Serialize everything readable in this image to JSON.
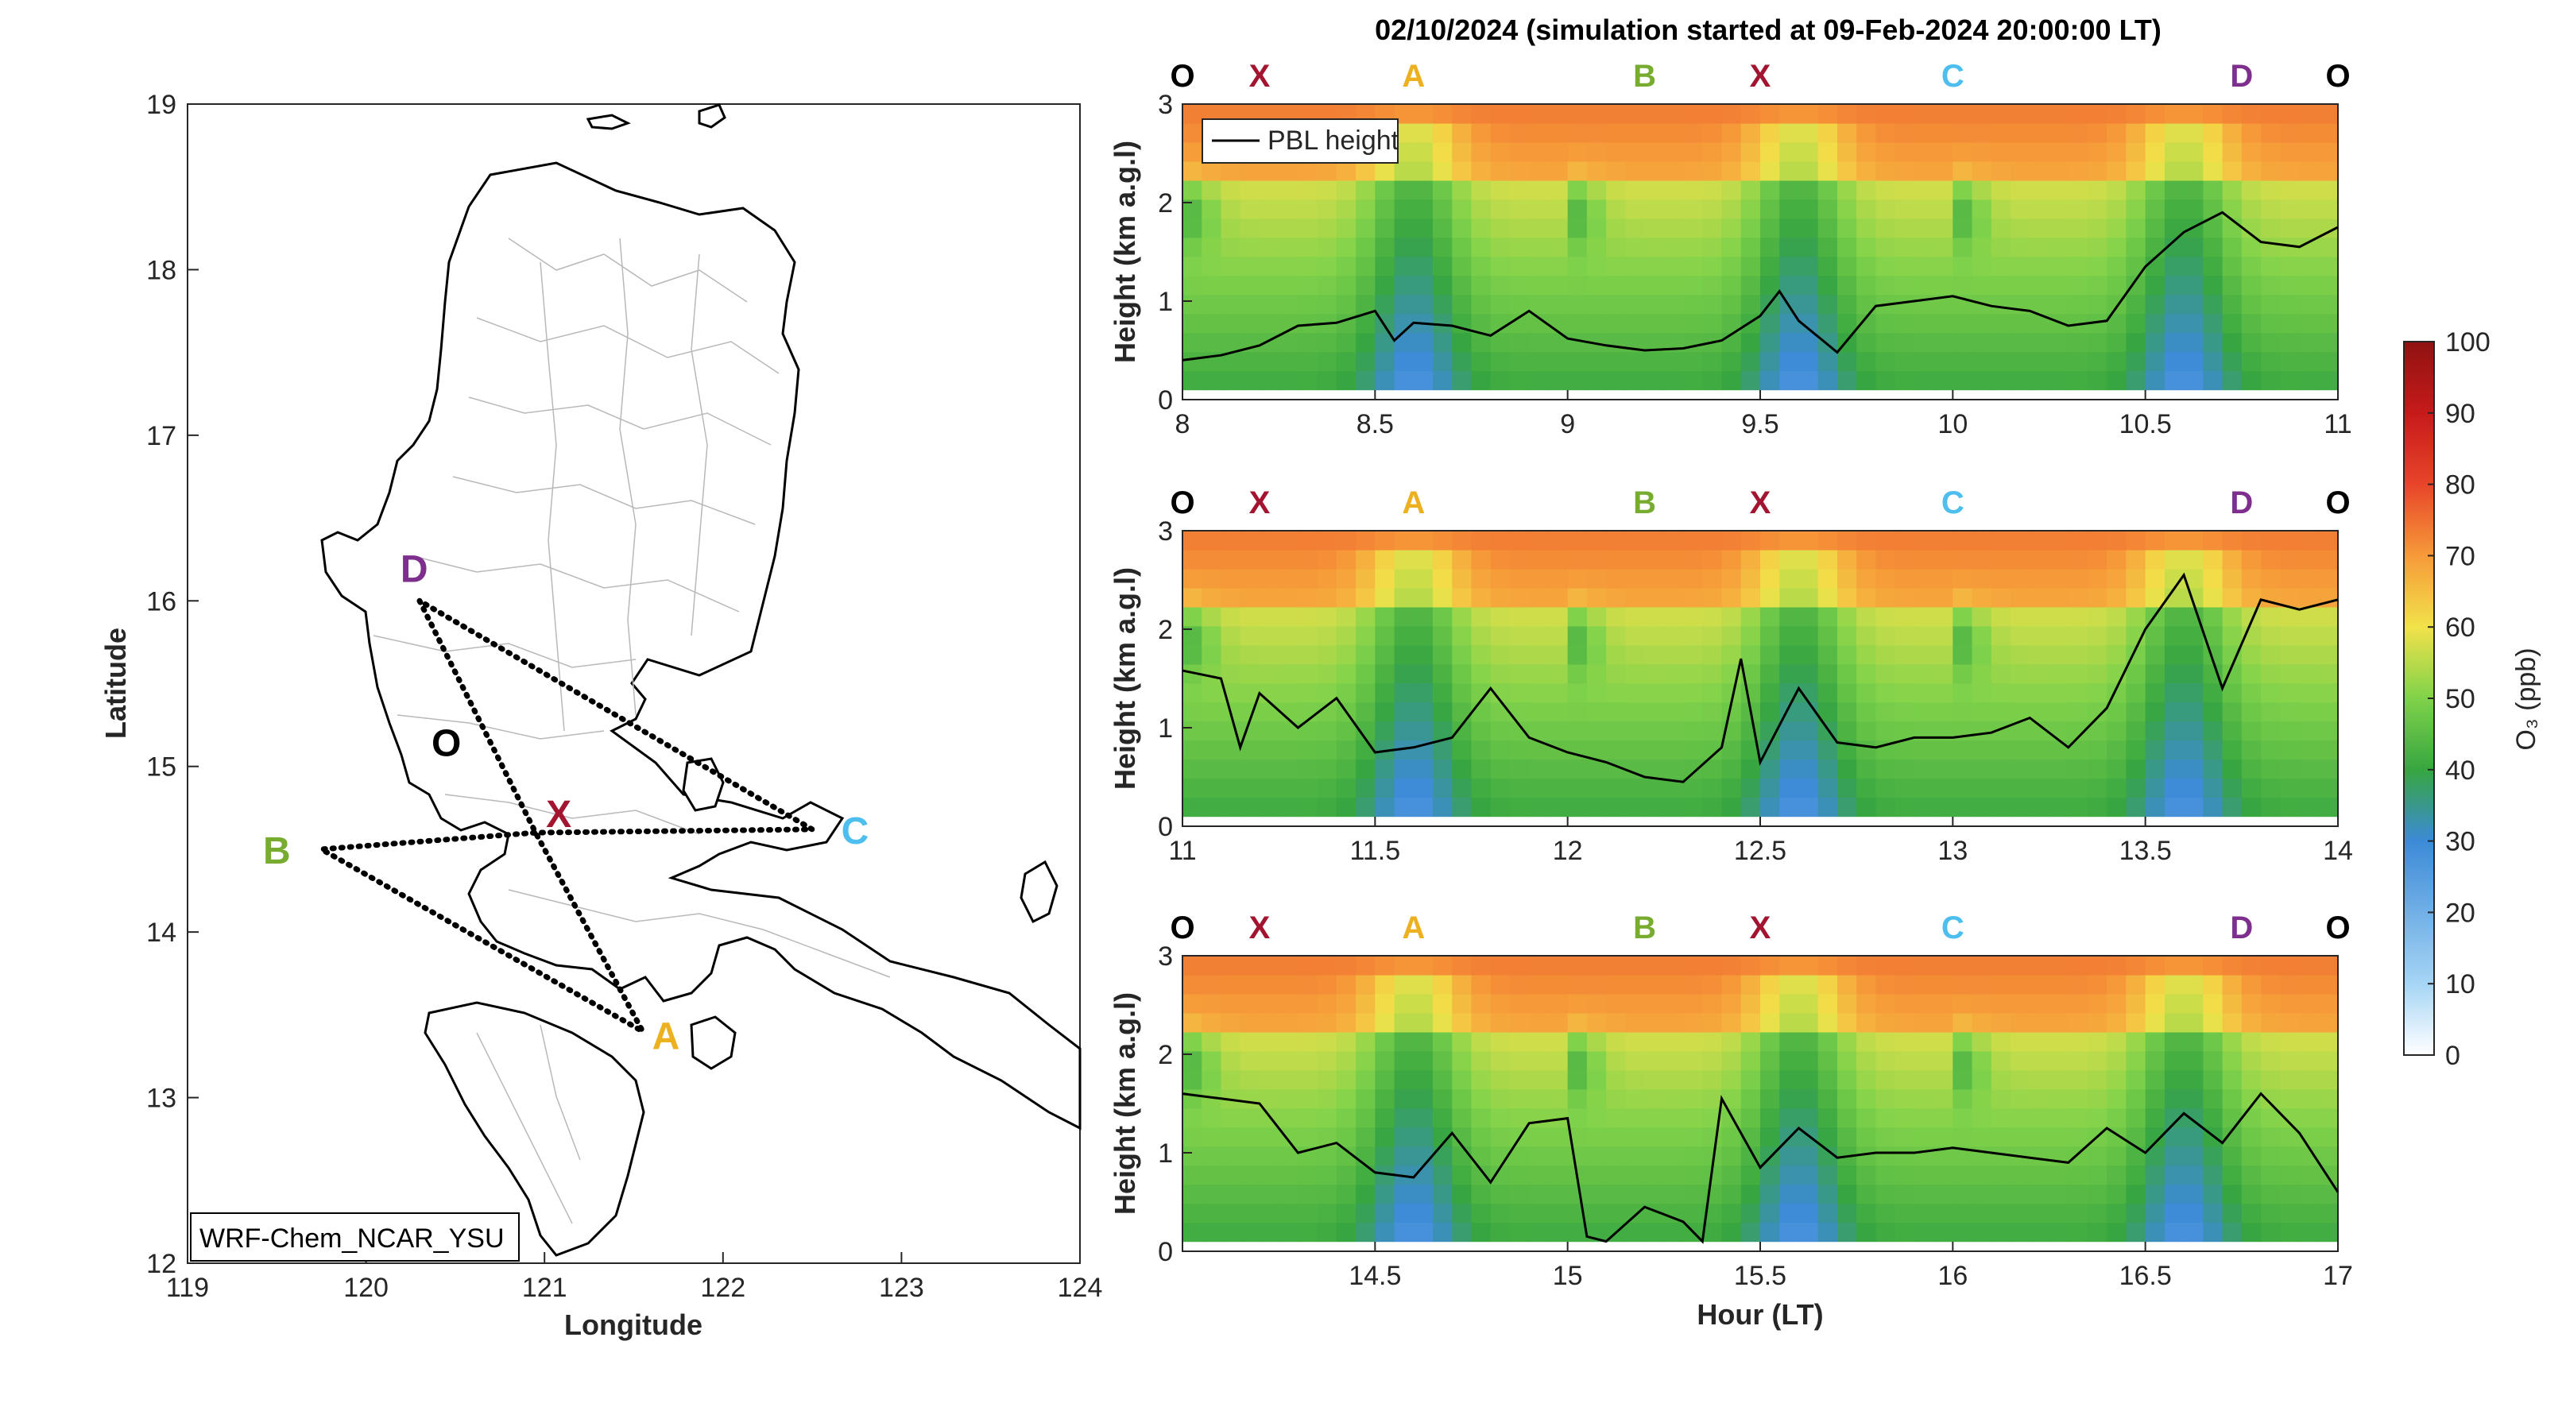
{
  "title": "02/10/2024 (simulation started at 09-Feb-2024 20:00:00 LT)",
  "map": {
    "xlabel": "Longitude",
    "ylabel": "Latitude",
    "xticks": [
      119,
      120,
      121,
      122,
      123,
      124
    ],
    "yticks": [
      12,
      13,
      14,
      15,
      16,
      17,
      18,
      19
    ],
    "xlim": [
      119,
      124
    ],
    "ylim": [
      12,
      19
    ],
    "model_label": "WRF-Chem_NCAR_YSU",
    "points": [
      {
        "id": "O",
        "lon": 120.45,
        "lat": 15.15,
        "color": "#000000"
      },
      {
        "id": "X",
        "lon": 121.08,
        "lat": 14.72,
        "color": "#a2142f"
      },
      {
        "id": "A",
        "lon": 121.68,
        "lat": 13.38,
        "color": "#edb120"
      },
      {
        "id": "B",
        "lon": 119.5,
        "lat": 14.5,
        "color": "#77ac30"
      },
      {
        "id": "C",
        "lon": 122.74,
        "lat": 14.62,
        "color": "#4dbeee"
      },
      {
        "id": "D",
        "lon": 120.27,
        "lat": 16.2,
        "color": "#7e2f8e"
      }
    ],
    "route": [
      [
        120.3,
        16.0
      ],
      [
        120.95,
        14.6
      ],
      [
        121.55,
        13.4
      ],
      [
        119.75,
        14.5
      ],
      [
        120.95,
        14.6
      ],
      [
        122.5,
        14.62
      ],
      [
        120.3,
        16.0
      ]
    ]
  },
  "chart_data": {
    "type": "heatmap",
    "variable": "O3",
    "colorbar": {
      "label": "O₃ (ppb)",
      "min": 0,
      "max": 100,
      "ticks": [
        0,
        10,
        20,
        30,
        40,
        50,
        60,
        70,
        80,
        90,
        100
      ]
    },
    "legend": "PBL height",
    "panels": [
      {
        "xlim": [
          8,
          11
        ],
        "xticks": [
          8,
          8.5,
          9,
          9.5,
          10,
          10.5,
          11
        ],
        "ylim": [
          0,
          3
        ],
        "yticks": [
          0,
          1,
          2,
          3
        ],
        "ylabel": "Height (km a.g.l)",
        "xlabel": "",
        "markers": [
          [
            "O",
            8.0
          ],
          [
            "X",
            8.2
          ],
          [
            "A",
            8.6
          ],
          [
            "B",
            9.2
          ],
          [
            "X",
            9.5
          ],
          [
            "C",
            10.0
          ],
          [
            "D",
            10.75
          ],
          [
            "O",
            11.0
          ]
        ],
        "pbl": [
          [
            8.0,
            0.4
          ],
          [
            8.1,
            0.45
          ],
          [
            8.2,
            0.55
          ],
          [
            8.3,
            0.75
          ],
          [
            8.4,
            0.78
          ],
          [
            8.5,
            0.9
          ],
          [
            8.55,
            0.6
          ],
          [
            8.6,
            0.78
          ],
          [
            8.7,
            0.75
          ],
          [
            8.8,
            0.65
          ],
          [
            8.9,
            0.9
          ],
          [
            9.0,
            0.62
          ],
          [
            9.1,
            0.55
          ],
          [
            9.2,
            0.5
          ],
          [
            9.3,
            0.52
          ],
          [
            9.4,
            0.6
          ],
          [
            9.5,
            0.85
          ],
          [
            9.55,
            1.1
          ],
          [
            9.6,
            0.8
          ],
          [
            9.7,
            0.48
          ],
          [
            9.8,
            0.95
          ],
          [
            9.9,
            1.0
          ],
          [
            10.0,
            1.05
          ],
          [
            10.1,
            0.95
          ],
          [
            10.2,
            0.9
          ],
          [
            10.3,
            0.75
          ],
          [
            10.4,
            0.8
          ],
          [
            10.5,
            1.35
          ],
          [
            10.6,
            1.7
          ],
          [
            10.7,
            1.9
          ],
          [
            10.8,
            1.6
          ],
          [
            10.9,
            1.55
          ],
          [
            11.0,
            1.75
          ]
        ]
      },
      {
        "xlim": [
          11,
          14
        ],
        "xticks": [
          11,
          11.5,
          12,
          12.5,
          13,
          13.5,
          14
        ],
        "ylim": [
          0,
          3
        ],
        "yticks": [
          0,
          1,
          2,
          3
        ],
        "ylabel": "Height (km a.g.l)",
        "xlabel": "",
        "markers": [
          [
            "O",
            11.0
          ],
          [
            "X",
            11.2
          ],
          [
            "A",
            11.6
          ],
          [
            "B",
            12.2
          ],
          [
            "X",
            12.5
          ],
          [
            "C",
            13.0
          ],
          [
            "D",
            13.75
          ],
          [
            "O",
            14.0
          ]
        ],
        "pbl": [
          [
            11.0,
            1.58
          ],
          [
            11.1,
            1.5
          ],
          [
            11.15,
            0.8
          ],
          [
            11.2,
            1.35
          ],
          [
            11.3,
            1.0
          ],
          [
            11.4,
            1.3
          ],
          [
            11.5,
            0.75
          ],
          [
            11.6,
            0.8
          ],
          [
            11.7,
            0.9
          ],
          [
            11.8,
            1.4
          ],
          [
            11.9,
            0.9
          ],
          [
            12.0,
            0.75
          ],
          [
            12.1,
            0.65
          ],
          [
            12.2,
            0.5
          ],
          [
            12.3,
            0.45
          ],
          [
            12.4,
            0.8
          ],
          [
            12.45,
            1.7
          ],
          [
            12.5,
            0.65
          ],
          [
            12.6,
            1.4
          ],
          [
            12.7,
            0.85
          ],
          [
            12.8,
            0.8
          ],
          [
            12.9,
            0.9
          ],
          [
            13.0,
            0.9
          ],
          [
            13.1,
            0.95
          ],
          [
            13.2,
            1.1
          ],
          [
            13.3,
            0.8
          ],
          [
            13.4,
            1.2
          ],
          [
            13.5,
            2.0
          ],
          [
            13.6,
            2.55
          ],
          [
            13.7,
            1.4
          ],
          [
            13.8,
            2.3
          ],
          [
            13.9,
            2.2
          ],
          [
            14.0,
            2.3
          ]
        ]
      },
      {
        "xlim": [
          14,
          17
        ],
        "xticks": [
          14.5,
          15,
          15.5,
          16,
          16.5,
          17
        ],
        "ylim": [
          0,
          3
        ],
        "yticks": [
          0,
          1,
          2,
          3
        ],
        "ylabel": "Height (km a.g.l)",
        "xlabel": "Hour (LT)",
        "markers": [
          [
            "O",
            14.0
          ],
          [
            "X",
            14.2
          ],
          [
            "A",
            14.6
          ],
          [
            "B",
            15.2
          ],
          [
            "X",
            15.5
          ],
          [
            "C",
            16.0
          ],
          [
            "D",
            16.75
          ],
          [
            "O",
            17.0
          ]
        ],
        "pbl": [
          [
            14.0,
            1.6
          ],
          [
            14.1,
            1.55
          ],
          [
            14.2,
            1.5
          ],
          [
            14.3,
            1.0
          ],
          [
            14.4,
            1.1
          ],
          [
            14.5,
            0.8
          ],
          [
            14.6,
            0.75
          ],
          [
            14.7,
            1.2
          ],
          [
            14.8,
            0.7
          ],
          [
            14.9,
            1.3
          ],
          [
            15.0,
            1.35
          ],
          [
            15.05,
            0.15
          ],
          [
            15.1,
            0.1
          ],
          [
            15.2,
            0.45
          ],
          [
            15.3,
            0.3
          ],
          [
            15.35,
            0.1
          ],
          [
            15.4,
            1.55
          ],
          [
            15.5,
            0.85
          ],
          [
            15.6,
            1.25
          ],
          [
            15.7,
            0.95
          ],
          [
            15.8,
            1.0
          ],
          [
            15.9,
            1.0
          ],
          [
            16.0,
            1.05
          ],
          [
            16.1,
            1.0
          ],
          [
            16.2,
            0.95
          ],
          [
            16.3,
            0.9
          ],
          [
            16.4,
            1.25
          ],
          [
            16.5,
            1.0
          ],
          [
            16.6,
            1.4
          ],
          [
            16.7,
            1.1
          ],
          [
            16.8,
            1.6
          ],
          [
            16.9,
            1.2
          ],
          [
            17.0,
            0.6
          ]
        ]
      }
    ]
  }
}
